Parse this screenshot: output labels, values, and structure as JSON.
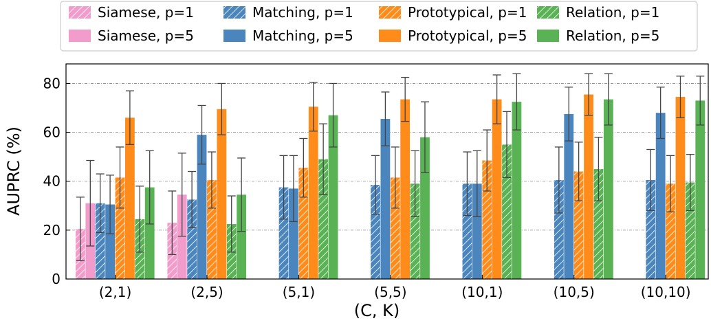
{
  "chart_data": {
    "type": "bar",
    "xlabel": "(C, K)",
    "ylabel": "AUPRC (%)",
    "ylim": [
      0,
      88
    ],
    "yticks": [
      0,
      20,
      40,
      60,
      80
    ],
    "grid": "horizontal dash-dot",
    "legend_position": "top, above plot",
    "categories": [
      "(2,1)",
      "(2,5)",
      "(5,1)",
      "(5,5)",
      "(10,1)",
      "(10,5)",
      "(10,10)"
    ],
    "series": [
      {
        "name": "Siamese, p=1",
        "color": "#f29ccb",
        "hatched": true,
        "values": [
          20.5,
          23,
          null,
          null,
          null,
          null,
          null
        ],
        "err": [
          13,
          13,
          null,
          null,
          null,
          null,
          null
        ]
      },
      {
        "name": "Siamese, p=5",
        "color": "#f29ccb",
        "hatched": false,
        "values": [
          31,
          34.5,
          null,
          null,
          null,
          null,
          null
        ],
        "err": [
          17.5,
          17,
          null,
          null,
          null,
          null,
          null
        ]
      },
      {
        "name": "Matching, p=1",
        "color": "#4a86bd",
        "hatched": true,
        "values": [
          31,
          32.5,
          37.5,
          38.5,
          39,
          40.5,
          40.5
        ],
        "err": [
          12,
          11.5,
          13,
          12,
          13,
          13.5,
          12.5
        ]
      },
      {
        "name": "Matching, p=5",
        "color": "#4a86bd",
        "hatched": false,
        "values": [
          30.5,
          59,
          37,
          65.5,
          39,
          67.5,
          68
        ],
        "err": [
          12,
          12,
          13.5,
          11,
          13.5,
          11,
          10.5
        ]
      },
      {
        "name": "Prototypical, p=1",
        "color": "#ff8c1a",
        "hatched": true,
        "values": [
          41.5,
          40.5,
          45.5,
          41.5,
          48.5,
          44,
          39
        ],
        "err": [
          12.5,
          11.5,
          12,
          12.5,
          12.5,
          12,
          11.5
        ]
      },
      {
        "name": "Prototypical, p=5",
        "color": "#ff8c1a",
        "hatched": false,
        "values": [
          66,
          69.5,
          70.5,
          73.5,
          73.5,
          75.5,
          74.5
        ],
        "err": [
          11,
          10.5,
          10,
          9,
          10,
          8.5,
          8.5
        ]
      },
      {
        "name": "Relation, p=1",
        "color": "#59b354",
        "hatched": true,
        "values": [
          24.5,
          22.5,
          49,
          39,
          55,
          45,
          39.5
        ],
        "err": [
          13.5,
          11.5,
          14.5,
          13.5,
          13.5,
          13,
          11.5
        ]
      },
      {
        "name": "Relation, p=5",
        "color": "#59b354",
        "hatched": false,
        "values": [
          37.5,
          34.5,
          67,
          58,
          72.5,
          73.5,
          73
        ],
        "err": [
          15,
          15,
          13,
          14.5,
          11.5,
          10.5,
          10
        ]
      }
    ]
  }
}
